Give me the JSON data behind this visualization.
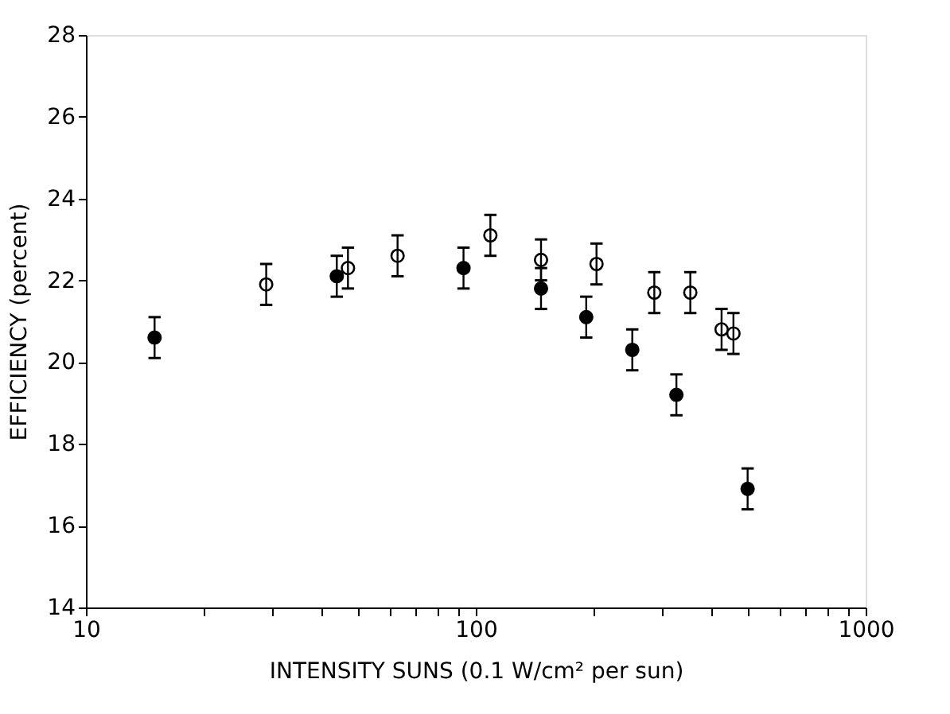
{
  "chart_data": {
    "type": "scatter",
    "xlabel": "INTENSITY SUNS (0.1 W/cm² per sun)",
    "ylabel": "EFFICIENCY (percent)",
    "log": "x",
    "grid": false,
    "marker": "circle",
    "xlim": [
      10,
      1000
    ],
    "ylim": [
      14,
      28
    ],
    "xticks": [
      10,
      {
        "value": 20,
        "label": null
      },
      {
        "value": 30,
        "label": null
      },
      {
        "value": 40,
        "label": null
      },
      {
        "value": 50,
        "label": null
      },
      {
        "value": 60,
        "label": null
      },
      {
        "value": 70,
        "label": null
      },
      {
        "value": 80,
        "label": null
      },
      {
        "value": 90,
        "label": null
      },
      100,
      {
        "value": 200,
        "label": null
      },
      {
        "value": 300,
        "label": null
      },
      {
        "value": 400,
        "label": null
      },
      {
        "value": 500,
        "label": null
      },
      {
        "value": 600,
        "label": null
      },
      {
        "value": 700,
        "label": null
      },
      {
        "value": 800,
        "label": null
      },
      {
        "value": 900,
        "label": null
      },
      1000
    ],
    "yticks": [
      14,
      16,
      18,
      20,
      22,
      24,
      26,
      28
    ],
    "series": [
      {
        "color": "#000000",
        "x": [
          15,
          44,
          93,
          147,
          192,
          252,
          327,
          498
        ],
        "values": [
          20.6,
          22.1,
          22.3,
          21.8,
          21.1,
          20.3,
          19.2,
          16.9
        ],
        "errors": [
          0.5,
          0.5,
          0.5,
          0.5,
          0.5,
          0.5,
          0.5,
          0.5
        ]
      },
      {
        "color": "#000000",
        "x": [
          29,
          47,
          63,
          109,
          147,
          204,
          287,
          355,
          427,
          458
        ],
        "values": [
          21.9,
          22.3,
          22.6,
          23.1,
          22.5,
          22.4,
          21.7,
          21.7,
          20.8,
          20.7
        ],
        "errors": [
          0.5,
          0.5,
          0.5,
          0.5,
          0.5,
          0.5,
          0.5,
          0.5,
          0.5,
          0.5
        ]
      }
    ]
  }
}
